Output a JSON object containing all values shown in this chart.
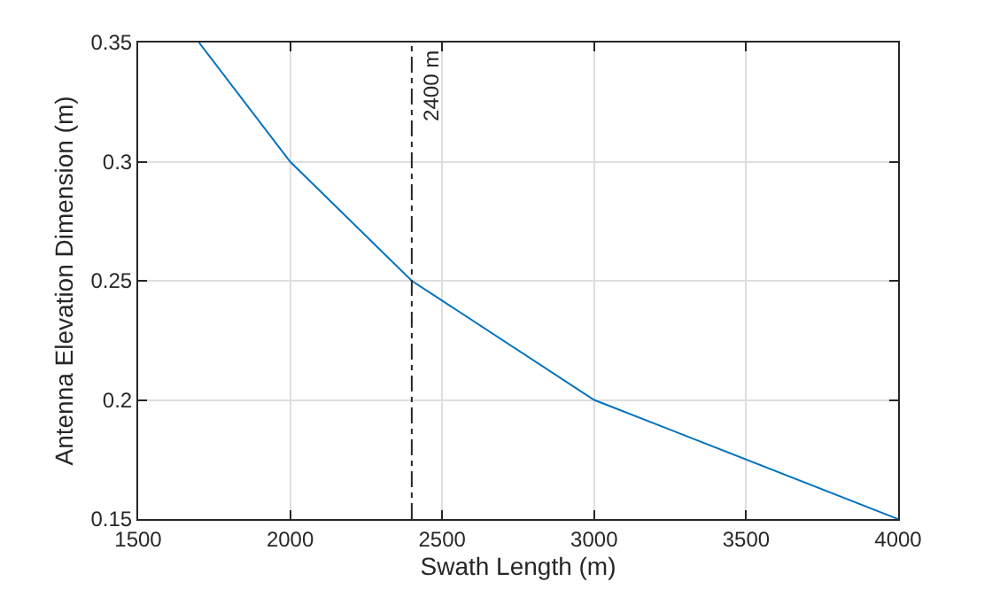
{
  "chart_data": {
    "type": "line",
    "xlabel": "Swath Length (m)",
    "ylabel": "Antenna Elevation Dimension (m)",
    "x": [
      1700,
      2000,
      2400,
      3000,
      4000
    ],
    "series": [
      {
        "color": "#0072bd",
        "values": [
          0.35,
          0.3,
          0.25,
          0.2,
          0.15
        ]
      }
    ],
    "xlim": [
      1500,
      4000
    ],
    "xticks": [
      1500,
      2000,
      2500,
      3000,
      3500,
      4000
    ],
    "ylim": [
      0.15,
      0.35
    ],
    "yticks": [
      0.15,
      0.2,
      0.25,
      0.3,
      0.35
    ],
    "grid": true,
    "marker": "none",
    "line_style": "solid",
    "ref_lines": [
      {
        "axis": "x",
        "value": 2400,
        "label": "2400 m",
        "color": "#262626",
        "line_style": "dashdot"
      }
    ]
  }
}
